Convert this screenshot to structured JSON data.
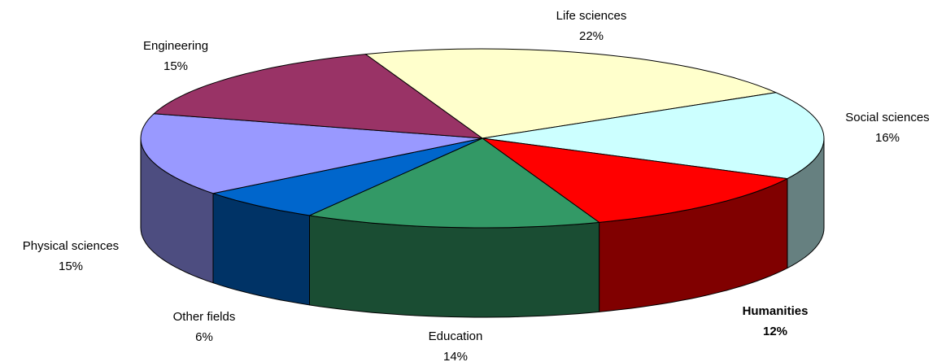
{
  "chart_data": {
    "type": "pie3d",
    "categories": [
      "Life sciences",
      "Social sciences",
      "Humanities",
      "Education",
      "Other fields",
      "Physical sciences",
      "Engineering"
    ],
    "values": [
      22,
      16,
      12,
      14,
      6,
      15,
      15
    ],
    "value_labels": [
      "22%",
      "16%",
      "12%",
      "14%",
      "6%",
      "15%",
      "15%"
    ],
    "colors": [
      "#ffffcc",
      "#ccffff",
      "#ff0000",
      "#339966",
      "#0066cc",
      "#9999ff",
      "#993366"
    ],
    "label_bold": [
      false,
      false,
      true,
      false,
      false,
      false,
      false
    ]
  }
}
